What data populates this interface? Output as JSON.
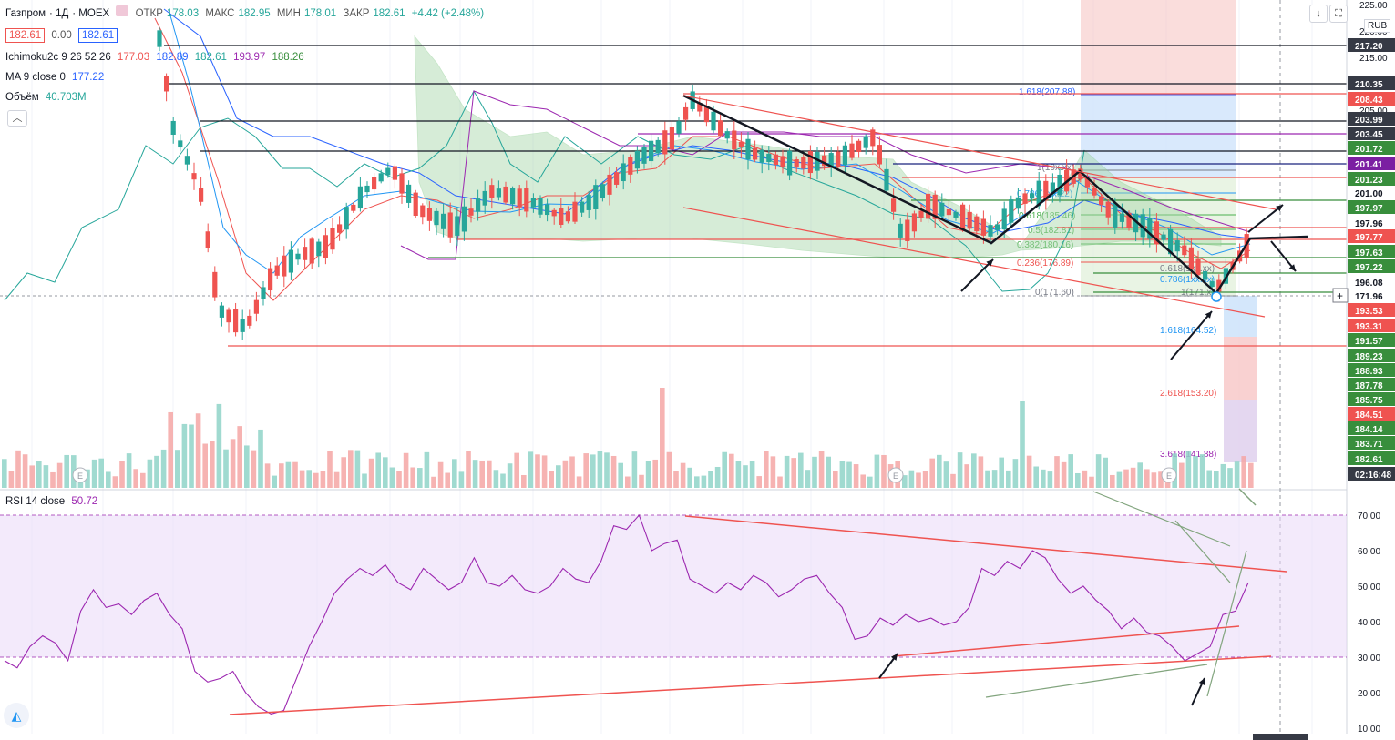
{
  "header": {
    "symbol": "Газпром",
    "interval": "1Д",
    "exchange": "MOEX",
    "open_label": "ОТКР",
    "open": "178.03",
    "high_label": "МАКС",
    "high": "182.95",
    "low_label": "МИН",
    "low": "178.01",
    "close_label": "ЗАКР",
    "close": "182.61",
    "change": "+4.42 (+2.48%)",
    "bid": "182.61",
    "spread": "0.00",
    "ask": "182.61"
  },
  "indicators": {
    "ichimoku_label": "Ichimoku2c 9 26 52 26",
    "ichimoku_values": [
      "177.03",
      "182.89",
      "182.61",
      "193.97",
      "188.26"
    ],
    "ma_label": "MA 9 close 0",
    "ma_value": "177.22",
    "volume_label": "Объём",
    "volume_value": "40.703M",
    "rsi_label": "RSI 14 close",
    "rsi_value": "50.72"
  },
  "currency": "RUB",
  "icons": [
    "down-arrow-icon",
    "fullscreen-icon",
    "collapse-icon",
    "tradingview-logo-icon",
    "plus-icon"
  ],
  "colors": {
    "up": "#26a69a",
    "down": "#ef5350",
    "rsi": "#9c27b0",
    "rsi_band": "#e9d8f7",
    "cloud": "#a5d6a7"
  },
  "chart_data": {
    "type": "candlestick",
    "price_axis_ticks": [
      225.0,
      220.0,
      215.0,
      210.0,
      205.0
    ],
    "price_axis_labels": [
      "217.20",
      "210.35",
      "208.43",
      "203.99",
      "203.45",
      "201.72",
      "201.41",
      "201.23",
      "201.00",
      "197.97",
      "197.96",
      "197.77",
      "197.63",
      "197.22",
      "196.08",
      "171.96",
      "193.53",
      "193.31",
      "191.57",
      "189.23",
      "188.93",
      "187.78",
      "185.75",
      "184.51",
      "184.14",
      "183.71",
      "182.61",
      "02:16:48"
    ],
    "fib_labels": [
      "1.618(207.88)",
      "1(19x.xx)",
      "0.786(1xx.22)",
      "0.618(185.46)",
      "0.5(182.81)",
      "0.382(180.16)",
      "0.236(176.89)",
      "0(171.60)",
      "0.618(1xx.xx)",
      "0.786(1xx.xx)",
      "1(171.xx)",
      "1.618(164.52)",
      "2.618(153.20)",
      "3.618(141.88)"
    ],
    "rsi": {
      "axis_ticks": [
        70.0,
        60.0,
        50.0,
        40.0,
        30.0,
        20.0,
        10.0
      ],
      "overbought": 70,
      "oversold": 30,
      "values": [
        29,
        27,
        33,
        36,
        34,
        29,
        43,
        49,
        44,
        45,
        42,
        46,
        48,
        42,
        38,
        26,
        23,
        24,
        26,
        20,
        16,
        14,
        15,
        24,
        33,
        40,
        48,
        52,
        55,
        53,
        56,
        51,
        49,
        55,
        52,
        49,
        51,
        58,
        51,
        50,
        53,
        49,
        48,
        50,
        55,
        52,
        51,
        57,
        67,
        66,
        70,
        60,
        62,
        63,
        52,
        50,
        48,
        51,
        49,
        53,
        51,
        47,
        49,
        52,
        53,
        48,
        44,
        35,
        36,
        41,
        39,
        42,
        40,
        41,
        39,
        40,
        44,
        55,
        53,
        57,
        55,
        60,
        58,
        52,
        48,
        50,
        46,
        43,
        38,
        41,
        37,
        36,
        33,
        29,
        31,
        33,
        42,
        43,
        51
      ]
    }
  }
}
